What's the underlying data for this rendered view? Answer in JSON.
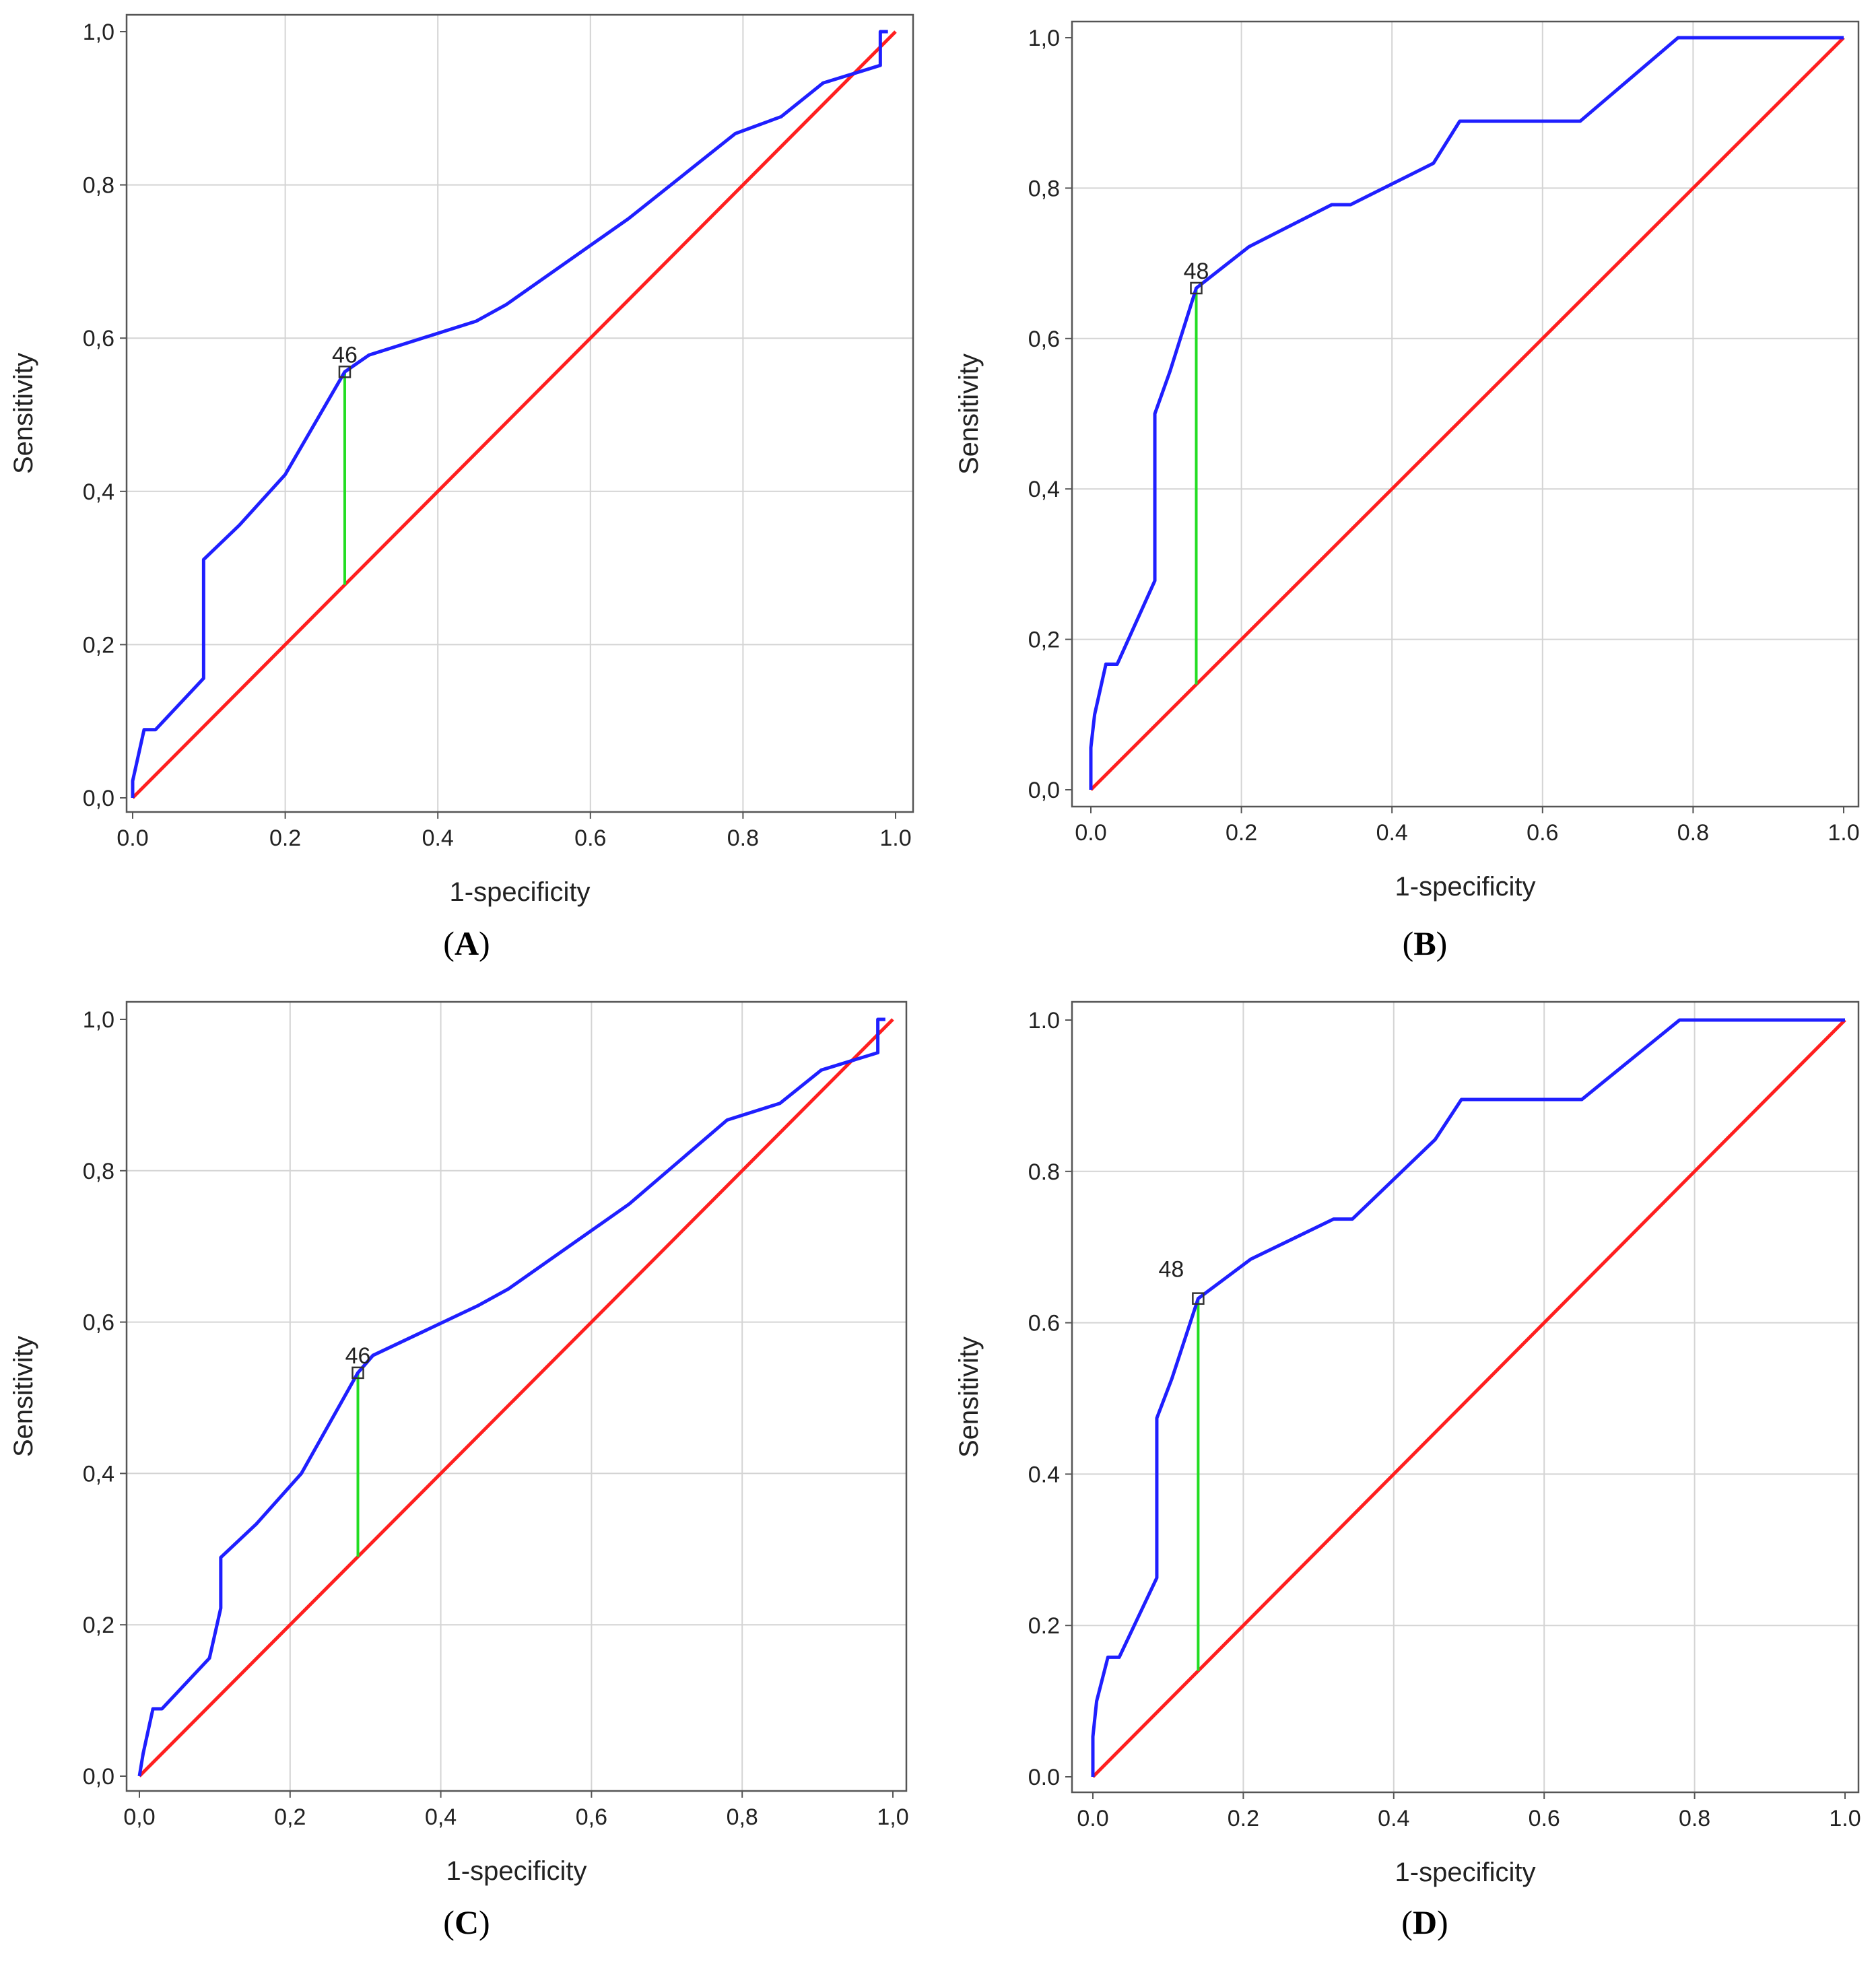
{
  "colors": {
    "roc": "#1f1fff",
    "reference": "#ff1f1f",
    "youden": "#22dd22",
    "grid": "#d4d4d4",
    "frame": "#555555"
  },
  "chart_data": [
    {
      "panel": "A",
      "type": "line",
      "xlabel": "1-specificity",
      "ylabel": "Sensitivity",
      "xlim": [
        0,
        1
      ],
      "ylim": [
        0,
        1
      ],
      "xticks": [
        "0.0",
        "0.2",
        "0.4",
        "0.6",
        "0.8",
        "1.0"
      ],
      "yticks": [
        "0,0",
        "0,2",
        "0,4",
        "0,6",
        "0,8",
        "1,0"
      ],
      "grid": true,
      "roc": {
        "x": [
          0,
          0,
          0.015,
          0.03,
          0.093,
          0.093,
          0.14,
          0.2,
          0.278,
          0.31,
          0.45,
          0.49,
          0.65,
          0.79,
          0.85,
          0.905,
          0.98,
          0.98,
          0.99
        ],
        "y": [
          0,
          0.022,
          0.089,
          0.089,
          0.156,
          0.311,
          0.356,
          0.422,
          0.556,
          0.578,
          0.622,
          0.644,
          0.756,
          0.867,
          0.889,
          0.933,
          0.956,
          1.0,
          1.0
        ]
      },
      "reference": {
        "x": [
          0,
          1
        ],
        "y": [
          0,
          1
        ]
      },
      "cutoff": {
        "label": "46",
        "x": 0.278,
        "y": 0.556
      }
    },
    {
      "panel": "B",
      "type": "line",
      "xlabel": "1-specificity",
      "ylabel": "Sensitivity",
      "xlim": [
        0,
        1
      ],
      "ylim": [
        0,
        1
      ],
      "xticks": [
        "0.0",
        "0.2",
        "0.4",
        "0.6",
        "0.8",
        "1.0"
      ],
      "yticks": [
        "0,0",
        "0,2",
        "0,4",
        "0,6",
        "0,8",
        "1,0"
      ],
      "grid": true,
      "roc": {
        "x": [
          0,
          0,
          0.005,
          0.02,
          0.035,
          0.085,
          0.085,
          0.105,
          0.14,
          0.21,
          0.32,
          0.345,
          0.455,
          0.49,
          0.65,
          0.78,
          1.0
        ],
        "y": [
          0,
          0.056,
          0.1,
          0.167,
          0.167,
          0.278,
          0.5,
          0.556,
          0.667,
          0.722,
          0.778,
          0.778,
          0.833,
          0.889,
          0.889,
          1.0,
          1.0
        ]
      },
      "reference": {
        "x": [
          0,
          1
        ],
        "y": [
          0,
          1
        ]
      },
      "cutoff": {
        "label": "48",
        "x": 0.14,
        "y": 0.667
      }
    },
    {
      "panel": "C",
      "type": "line",
      "xlabel": "1-specificity",
      "ylabel": "Sensitivity",
      "xlim": [
        0,
        1
      ],
      "ylim": [
        0,
        1
      ],
      "xticks": [
        "0,0",
        "0,2",
        "0,4",
        "0,6",
        "0,8",
        "1,0"
      ],
      "yticks": [
        "0,0",
        "0,2",
        "0,4",
        "0,6",
        "0,8",
        "1,0"
      ],
      "grid": true,
      "roc": {
        "x": [
          0,
          0.005,
          0.018,
          0.03,
          0.093,
          0.108,
          0.108,
          0.155,
          0.215,
          0.29,
          0.31,
          0.45,
          0.49,
          0.65,
          0.78,
          0.85,
          0.905,
          0.98,
          0.98,
          0.99
        ],
        "y": [
          0,
          0.03,
          0.089,
          0.089,
          0.156,
          0.222,
          0.289,
          0.333,
          0.4,
          0.533,
          0.556,
          0.622,
          0.644,
          0.756,
          0.867,
          0.889,
          0.933,
          0.956,
          1.0,
          1.0
        ]
      },
      "reference": {
        "x": [
          0,
          1
        ],
        "y": [
          0,
          1
        ]
      },
      "cutoff": {
        "label": "46",
        "x": 0.29,
        "y": 0.533
      }
    },
    {
      "panel": "D",
      "type": "line",
      "xlabel": "1-specificity",
      "ylabel": "Sensitivity",
      "xlim": [
        0,
        1
      ],
      "ylim": [
        0,
        1
      ],
      "xticks": [
        "0.0",
        "0.2",
        "0.4",
        "0.6",
        "0.8",
        "1.0"
      ],
      "yticks": [
        "0.0",
        "0.2",
        "0.4",
        "0.6",
        "0.8",
        "1.0"
      ],
      "grid": true,
      "roc": {
        "x": [
          0,
          0,
          0.005,
          0.02,
          0.035,
          0.085,
          0.085,
          0.105,
          0.14,
          0.21,
          0.32,
          0.345,
          0.455,
          0.49,
          0.65,
          0.78,
          1.0
        ],
        "y": [
          0,
          0.053,
          0.1,
          0.158,
          0.158,
          0.263,
          0.474,
          0.526,
          0.632,
          0.684,
          0.737,
          0.737,
          0.842,
          0.895,
          0.895,
          1.0,
          1.0
        ]
      },
      "reference": {
        "x": [
          0,
          1
        ],
        "y": [
          0,
          1
        ]
      },
      "cutoff": {
        "label": "48",
        "x": 0.14,
        "y": 0.632
      }
    }
  ]
}
